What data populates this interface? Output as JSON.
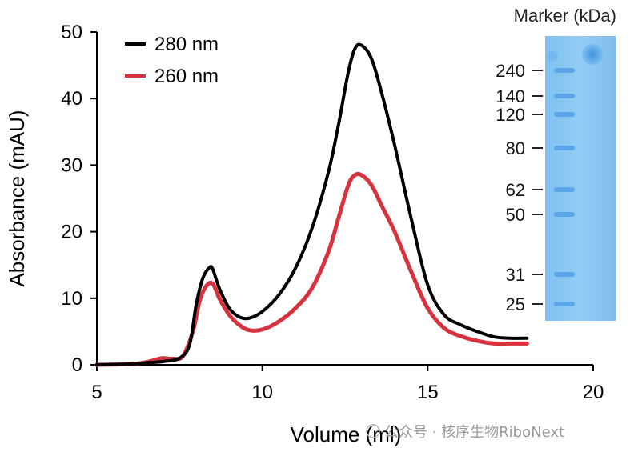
{
  "chart_data": {
    "type": "line",
    "xlabel": "Volume (ml)",
    "ylabel": "Absorbance (mAU)",
    "xlim": [
      5,
      20
    ],
    "ylim": [
      0,
      50
    ],
    "xticks": [
      5,
      10,
      15,
      20
    ],
    "yticks": [
      0,
      10,
      20,
      30,
      40,
      50
    ],
    "grid": false,
    "legend_position": "top-left",
    "series": [
      {
        "name": "280 nm",
        "color": "#000000",
        "x": [
          5,
          6,
          6.5,
          7,
          7.5,
          7.8,
          8.0,
          8.2,
          8.4,
          8.5,
          8.7,
          9.0,
          9.3,
          9.6,
          10,
          10.5,
          11,
          11.5,
          12,
          12.3,
          12.6,
          12.8,
          13.0,
          13.3,
          13.6,
          14,
          14.5,
          15,
          15.5,
          16,
          16.5,
          17,
          17.5,
          18
        ],
        "y": [
          0,
          0.1,
          0.3,
          0.5,
          1.0,
          3.0,
          9.0,
          13.0,
          14.6,
          14.4,
          11.5,
          8.5,
          7.2,
          7.0,
          8.0,
          10.5,
          14.5,
          20.5,
          29.0,
          36.0,
          44.0,
          47.5,
          48.0,
          46.0,
          41.0,
          33.0,
          22.0,
          12.0,
          7.5,
          6.0,
          5.0,
          4.2,
          4.0,
          4.0
        ]
      },
      {
        "name": "260 nm",
        "color": "#d9323f",
        "x": [
          5,
          6,
          6.5,
          6.8,
          7.0,
          7.3,
          7.6,
          7.9,
          8.1,
          8.3,
          8.5,
          8.7,
          9.0,
          9.3,
          9.6,
          10,
          10.5,
          11,
          11.5,
          12,
          12.3,
          12.6,
          12.8,
          13.0,
          13.3,
          13.6,
          14,
          14.5,
          15,
          15.5,
          16,
          16.5,
          17,
          17.5,
          18
        ],
        "y": [
          0,
          0.1,
          0.4,
          0.8,
          1.0,
          0.9,
          1.3,
          5.0,
          9.5,
          11.8,
          12.2,
          10.0,
          7.5,
          6.0,
          5.2,
          5.3,
          6.5,
          8.5,
          11.5,
          17.0,
          22.0,
          27.0,
          28.5,
          28.5,
          27.0,
          24.0,
          20.0,
          14.0,
          8.5,
          5.5,
          4.3,
          3.6,
          3.2,
          3.2,
          3.2
        ]
      }
    ]
  },
  "gel": {
    "title": "Marker (kDa)",
    "markers": [
      "240",
      "140",
      "120",
      "80",
      "62",
      "50",
      "31",
      "25"
    ],
    "background_color": "#8fcbf4",
    "band_color": "#5aa6e8"
  },
  "watermark": "公众号 · 核序生物RiboNext"
}
